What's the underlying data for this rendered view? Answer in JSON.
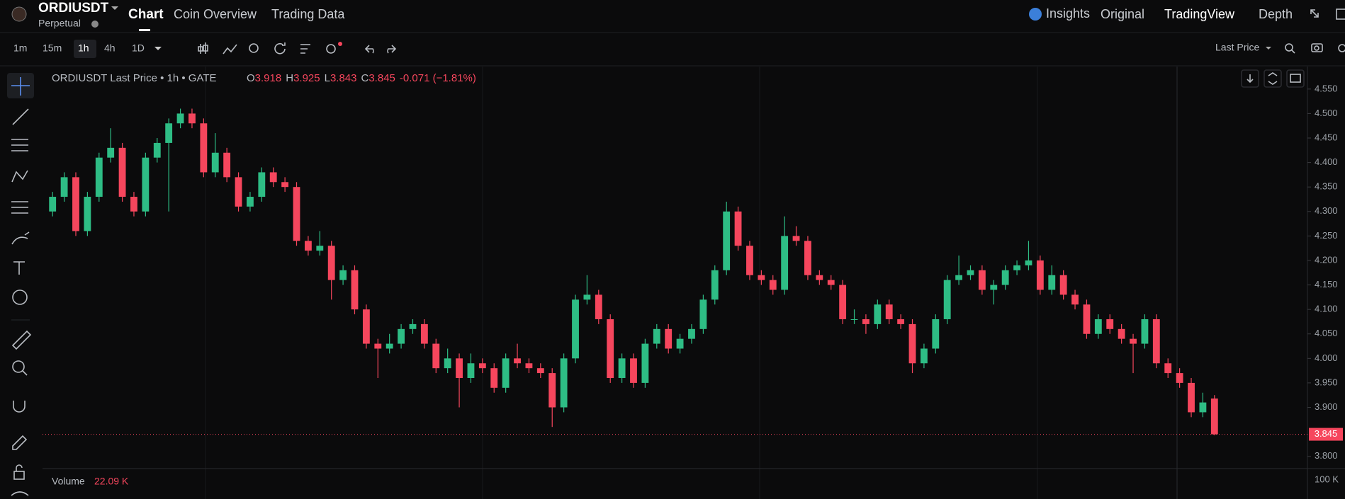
{
  "header": {
    "symbol": "ORDIUSDT",
    "contract": "Perpetual",
    "tabs": [
      "Chart",
      "Coin Overview",
      "Trading Data"
    ],
    "right": [
      "Insights",
      "Original",
      "TradingView",
      "Depth"
    ]
  },
  "toolbar": {
    "intervals": [
      "1m",
      "15m",
      "1h",
      "4h",
      "1D"
    ],
    "price_type": "Last Price"
  },
  "legend": {
    "title": "ORDIUSDT Last Price • 1h • GATE",
    "o_label": "O",
    "o": "3.918",
    "h_label": "H",
    "h": "3.925",
    "l_label": "L",
    "l": "3.843",
    "c_label": "C",
    "c": "3.845",
    "change": "-0.071 (−1.81%)"
  },
  "volume": {
    "label": "Volume",
    "value": "22.09 K",
    "tick": "100 K"
  },
  "chart": {
    "type": "candlestick",
    "up_color": "#2ebd85",
    "down_color": "#f6465d",
    "last_price": {
      "value": 3.845,
      "label": "3.845"
    },
    "ylim": [
      3.775,
      4.596
    ],
    "yticks": [
      {
        "value": 3.8,
        "label": "3.800"
      },
      {
        "value": 3.9,
        "label": "3.900"
      },
      {
        "value": 3.95,
        "label": "3.950"
      },
      {
        "value": 4.0,
        "label": "4.000"
      },
      {
        "value": 4.05,
        "label": "4.050"
      },
      {
        "value": 4.1,
        "label": "4.100"
      },
      {
        "value": 4.15,
        "label": "4.150"
      },
      {
        "value": 4.2,
        "label": "4.200"
      },
      {
        "value": 4.25,
        "label": "4.250"
      },
      {
        "value": 4.3,
        "label": "4.300"
      },
      {
        "value": 4.35,
        "label": "4.350"
      },
      {
        "value": 4.4,
        "label": "4.400"
      },
      {
        "value": 4.45,
        "label": "4.450"
      },
      {
        "value": 4.5,
        "label": "4.500"
      },
      {
        "value": 4.55,
        "label": "4.550"
      }
    ],
    "candles": [
      [
        4.3,
        4.34,
        4.29,
        4.33
      ],
      [
        4.33,
        4.38,
        4.32,
        4.37
      ],
      [
        4.37,
        4.38,
        4.25,
        4.26
      ],
      [
        4.26,
        4.34,
        4.25,
        4.33
      ],
      [
        4.33,
        4.42,
        4.32,
        4.41
      ],
      [
        4.41,
        4.47,
        4.4,
        4.43
      ],
      [
        4.43,
        4.44,
        4.32,
        4.33
      ],
      [
        4.33,
        4.34,
        4.29,
        4.3
      ],
      [
        4.3,
        4.42,
        4.29,
        4.41
      ],
      [
        4.41,
        4.45,
        4.4,
        4.44
      ],
      [
        4.44,
        4.49,
        4.3,
        4.48
      ],
      [
        4.48,
        4.51,
        4.47,
        4.5
      ],
      [
        4.5,
        4.51,
        4.47,
        4.48
      ],
      [
        4.48,
        4.49,
        4.37,
        4.38
      ],
      [
        4.38,
        4.46,
        4.37,
        4.42
      ],
      [
        4.42,
        4.43,
        4.36,
        4.37
      ],
      [
        4.37,
        4.38,
        4.3,
        4.31
      ],
      [
        4.31,
        4.34,
        4.3,
        4.33
      ],
      [
        4.33,
        4.39,
        4.32,
        4.38
      ],
      [
        4.38,
        4.39,
        4.35,
        4.36
      ],
      [
        4.36,
        4.37,
        4.34,
        4.35
      ],
      [
        4.35,
        4.36,
        4.23,
        4.24
      ],
      [
        4.24,
        4.25,
        4.21,
        4.22
      ],
      [
        4.22,
        4.26,
        4.21,
        4.23
      ],
      [
        4.23,
        4.24,
        4.12,
        4.16
      ],
      [
        4.16,
        4.19,
        4.15,
        4.18
      ],
      [
        4.18,
        4.19,
        4.09,
        4.1
      ],
      [
        4.1,
        4.11,
        4.02,
        4.03
      ],
      [
        4.03,
        4.04,
        3.96,
        4.02
      ],
      [
        4.02,
        4.05,
        4.01,
        4.03
      ],
      [
        4.03,
        4.07,
        4.02,
        4.06
      ],
      [
        4.06,
        4.08,
        4.05,
        4.07
      ],
      [
        4.07,
        4.08,
        4.02,
        4.03
      ],
      [
        4.03,
        4.04,
        3.97,
        3.98
      ],
      [
        3.98,
        4.02,
        3.97,
        4.0
      ],
      [
        4.0,
        4.01,
        3.9,
        3.96
      ],
      [
        3.96,
        4.01,
        3.95,
        3.99
      ],
      [
        3.99,
        4.0,
        3.97,
        3.98
      ],
      [
        3.98,
        3.99,
        3.93,
        3.94
      ],
      [
        3.94,
        4.01,
        3.93,
        4.0
      ],
      [
        4.0,
        4.03,
        3.98,
        3.99
      ],
      [
        3.99,
        4.0,
        3.97,
        3.98
      ],
      [
        3.98,
        3.99,
        3.96,
        3.97
      ],
      [
        3.97,
        3.98,
        3.86,
        3.9
      ],
      [
        3.9,
        4.01,
        3.89,
        4.0
      ],
      [
        4.0,
        4.13,
        3.99,
        4.12
      ],
      [
        4.12,
        4.17,
        4.11,
        4.13
      ],
      [
        4.13,
        4.14,
        4.07,
        4.08
      ],
      [
        4.08,
        4.09,
        3.95,
        3.96
      ],
      [
        3.96,
        4.01,
        3.95,
        4.0
      ],
      [
        4.0,
        4.01,
        3.94,
        3.95
      ],
      [
        3.95,
        4.04,
        3.94,
        4.03
      ],
      [
        4.03,
        4.07,
        4.02,
        4.06
      ],
      [
        4.06,
        4.07,
        4.01,
        4.02
      ],
      [
        4.02,
        4.05,
        4.01,
        4.04
      ],
      [
        4.04,
        4.07,
        4.03,
        4.06
      ],
      [
        4.06,
        4.13,
        4.05,
        4.12
      ],
      [
        4.12,
        4.19,
        4.11,
        4.18
      ],
      [
        4.18,
        4.32,
        4.17,
        4.3
      ],
      [
        4.3,
        4.31,
        4.22,
        4.23
      ],
      [
        4.23,
        4.24,
        4.16,
        4.17
      ],
      [
        4.17,
        4.18,
        4.15,
        4.16
      ],
      [
        4.16,
        4.17,
        4.13,
        4.14
      ],
      [
        4.14,
        4.29,
        4.13,
        4.25
      ],
      [
        4.25,
        4.27,
        4.23,
        4.24
      ],
      [
        4.24,
        4.25,
        4.16,
        4.17
      ],
      [
        4.17,
        4.18,
        4.15,
        4.16
      ],
      [
        4.16,
        4.17,
        4.14,
        4.15
      ],
      [
        4.15,
        4.16,
        4.07,
        4.08
      ],
      [
        4.08,
        4.1,
        4.07,
        4.08
      ],
      [
        4.08,
        4.09,
        4.05,
        4.07
      ],
      [
        4.07,
        4.12,
        4.06,
        4.11
      ],
      [
        4.11,
        4.12,
        4.07,
        4.08
      ],
      [
        4.08,
        4.09,
        4.06,
        4.07
      ],
      [
        4.07,
        4.08,
        3.97,
        3.99
      ],
      [
        3.99,
        4.03,
        3.98,
        4.02
      ],
      [
        4.02,
        4.09,
        4.01,
        4.08
      ],
      [
        4.08,
        4.17,
        4.07,
        4.16
      ],
      [
        4.16,
        4.21,
        4.15,
        4.17
      ],
      [
        4.17,
        4.19,
        4.16,
        4.18
      ],
      [
        4.18,
        4.19,
        4.13,
        4.14
      ],
      [
        4.14,
        4.16,
        4.11,
        4.15
      ],
      [
        4.15,
        4.19,
        4.14,
        4.18
      ],
      [
        4.18,
        4.2,
        4.17,
        4.19
      ],
      [
        4.19,
        4.24,
        4.18,
        4.2
      ],
      [
        4.2,
        4.21,
        4.13,
        4.14
      ],
      [
        4.14,
        4.19,
        4.13,
        4.17
      ],
      [
        4.17,
        4.18,
        4.12,
        4.13
      ],
      [
        4.13,
        4.14,
        4.1,
        4.11
      ],
      [
        4.11,
        4.12,
        4.04,
        4.05
      ],
      [
        4.05,
        4.09,
        4.04,
        4.08
      ],
      [
        4.08,
        4.09,
        4.05,
        4.06
      ],
      [
        4.06,
        4.07,
        4.03,
        4.04
      ],
      [
        4.04,
        4.05,
        3.97,
        4.03
      ],
      [
        4.03,
        4.09,
        4.02,
        4.08
      ],
      [
        4.08,
        4.09,
        3.98,
        3.99
      ],
      [
        3.99,
        4.0,
        3.96,
        3.97
      ],
      [
        3.97,
        3.98,
        3.94,
        3.95
      ],
      [
        3.95,
        3.96,
        3.88,
        3.89
      ],
      [
        3.89,
        3.93,
        3.88,
        3.91
      ],
      [
        3.918,
        3.925,
        3.843,
        3.845
      ]
    ]
  }
}
